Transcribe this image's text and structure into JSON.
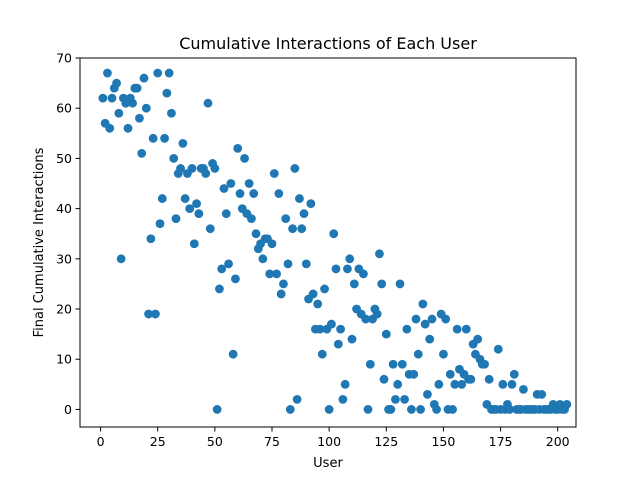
{
  "chart_data": {
    "type": "scatter",
    "title": "Cumulative Interactions of Each User",
    "xlabel": "User",
    "ylabel": "Final Cumulative Interactions",
    "xlim": [
      -9,
      208
    ],
    "ylim": [
      -3.5,
      70
    ],
    "xticks": [
      0,
      25,
      50,
      75,
      100,
      125,
      150,
      175,
      200
    ],
    "yticks": [
      0,
      10,
      20,
      30,
      40,
      50,
      60,
      70
    ],
    "grid": false,
    "legend": "none",
    "marker_color": "#1f77b4",
    "points": [
      [
        1,
        62
      ],
      [
        2,
        57
      ],
      [
        3,
        67
      ],
      [
        4,
        56
      ],
      [
        5,
        62
      ],
      [
        6,
        64
      ],
      [
        7,
        65
      ],
      [
        8,
        59
      ],
      [
        9,
        30
      ],
      [
        10,
        62
      ],
      [
        11,
        61
      ],
      [
        12,
        56
      ],
      [
        13,
        62
      ],
      [
        14,
        61
      ],
      [
        15,
        64
      ],
      [
        16,
        64
      ],
      [
        17,
        58
      ],
      [
        18,
        51
      ],
      [
        19,
        66
      ],
      [
        20,
        60
      ],
      [
        21,
        19
      ],
      [
        22,
        34
      ],
      [
        23,
        54
      ],
      [
        24,
        19
      ],
      [
        25,
        67
      ],
      [
        26,
        37
      ],
      [
        27,
        42
      ],
      [
        28,
        54
      ],
      [
        29,
        63
      ],
      [
        30,
        67
      ],
      [
        31,
        59
      ],
      [
        32,
        50
      ],
      [
        33,
        38
      ],
      [
        34,
        47
      ],
      [
        35,
        48
      ],
      [
        36,
        53
      ],
      [
        37,
        42
      ],
      [
        38,
        47
      ],
      [
        39,
        40
      ],
      [
        40,
        48
      ],
      [
        41,
        33
      ],
      [
        42,
        41
      ],
      [
        43,
        39
      ],
      [
        44,
        48
      ],
      [
        45,
        48
      ],
      [
        46,
        47
      ],
      [
        47,
        61
      ],
      [
        48,
        36
      ],
      [
        49,
        49
      ],
      [
        50,
        48
      ],
      [
        51,
        0
      ],
      [
        52,
        24
      ],
      [
        53,
        28
      ],
      [
        54,
        44
      ],
      [
        55,
        39
      ],
      [
        56,
        29
      ],
      [
        57,
        45
      ],
      [
        58,
        11
      ],
      [
        59,
        26
      ],
      [
        60,
        52
      ],
      [
        61,
        43
      ],
      [
        62,
        40
      ],
      [
        63,
        50
      ],
      [
        64,
        39
      ],
      [
        65,
        45
      ],
      [
        66,
        38
      ],
      [
        67,
        43
      ],
      [
        68,
        35
      ],
      [
        69,
        32
      ],
      [
        70,
        33
      ],
      [
        71,
        30
      ],
      [
        72,
        34
      ],
      [
        73,
        34
      ],
      [
        74,
        27
      ],
      [
        75,
        33
      ],
      [
        76,
        47
      ],
      [
        77,
        27
      ],
      [
        78,
        43
      ],
      [
        79,
        23
      ],
      [
        80,
        25
      ],
      [
        81,
        38
      ],
      [
        82,
        29
      ],
      [
        83,
        0
      ],
      [
        84,
        36
      ],
      [
        85,
        48
      ],
      [
        86,
        2
      ],
      [
        87,
        42
      ],
      [
        88,
        36
      ],
      [
        89,
        39
      ],
      [
        90,
        29
      ],
      [
        91,
        22
      ],
      [
        92,
        41
      ],
      [
        93,
        23
      ],
      [
        94,
        16
      ],
      [
        95,
        21
      ],
      [
        96,
        16
      ],
      [
        97,
        11
      ],
      [
        98,
        24
      ],
      [
        99,
        16
      ],
      [
        100,
        0
      ],
      [
        101,
        17
      ],
      [
        102,
        35
      ],
      [
        103,
        28
      ],
      [
        104,
        13
      ],
      [
        105,
        16
      ],
      [
        106,
        2
      ],
      [
        107,
        5
      ],
      [
        108,
        28
      ],
      [
        109,
        30
      ],
      [
        110,
        14
      ],
      [
        111,
        25
      ],
      [
        112,
        20
      ],
      [
        113,
        28
      ],
      [
        114,
        19
      ],
      [
        115,
        27
      ],
      [
        116,
        18
      ],
      [
        117,
        0
      ],
      [
        118,
        9
      ],
      [
        119,
        18
      ],
      [
        120,
        20
      ],
      [
        121,
        19
      ],
      [
        122,
        31
      ],
      [
        123,
        25
      ],
      [
        124,
        6
      ],
      [
        125,
        15
      ],
      [
        126,
        0
      ],
      [
        127,
        0
      ],
      [
        128,
        9
      ],
      [
        129,
        2
      ],
      [
        130,
        5
      ],
      [
        131,
        25
      ],
      [
        132,
        9
      ],
      [
        133,
        2
      ],
      [
        134,
        16
      ],
      [
        135,
        7
      ],
      [
        136,
        0
      ],
      [
        137,
        7
      ],
      [
        138,
        18
      ],
      [
        139,
        11
      ],
      [
        140,
        0
      ],
      [
        141,
        21
      ],
      [
        142,
        17
      ],
      [
        143,
        3
      ],
      [
        144,
        14
      ],
      [
        145,
        18
      ],
      [
        146,
        1
      ],
      [
        147,
        0
      ],
      [
        148,
        5
      ],
      [
        149,
        19
      ],
      [
        150,
        11
      ],
      [
        151,
        18
      ],
      [
        152,
        0
      ],
      [
        153,
        7
      ],
      [
        154,
        0
      ],
      [
        155,
        5
      ],
      [
        156,
        16
      ],
      [
        157,
        8
      ],
      [
        158,
        5
      ],
      [
        159,
        7
      ],
      [
        160,
        16
      ],
      [
        161,
        6
      ],
      [
        162,
        6
      ],
      [
        163,
        13
      ],
      [
        164,
        11
      ],
      [
        165,
        14
      ],
      [
        166,
        10
      ],
      [
        167,
        9
      ],
      [
        168,
        9
      ],
      [
        169,
        1
      ],
      [
        170,
        6
      ],
      [
        171,
        0
      ],
      [
        172,
        0
      ],
      [
        173,
        0
      ],
      [
        174,
        12
      ],
      [
        175,
        0
      ],
      [
        176,
        5
      ],
      [
        177,
        0
      ],
      [
        178,
        1
      ],
      [
        179,
        0
      ],
      [
        180,
        5
      ],
      [
        181,
        7
      ],
      [
        182,
        0
      ],
      [
        183,
        0
      ],
      [
        184,
        0
      ],
      [
        185,
        4
      ],
      [
        186,
        0
      ],
      [
        187,
        0
      ],
      [
        188,
        0
      ],
      [
        189,
        0
      ],
      [
        190,
        0
      ],
      [
        191,
        3
      ],
      [
        192,
        0
      ],
      [
        193,
        3
      ],
      [
        194,
        0
      ],
      [
        195,
        0
      ],
      [
        196,
        0
      ],
      [
        197,
        0
      ],
      [
        198,
        1
      ],
      [
        199,
        0
      ],
      [
        200,
        0
      ],
      [
        201,
        1
      ],
      [
        202,
        0
      ],
      [
        203,
        0
      ],
      [
        204,
        1
      ]
    ]
  }
}
